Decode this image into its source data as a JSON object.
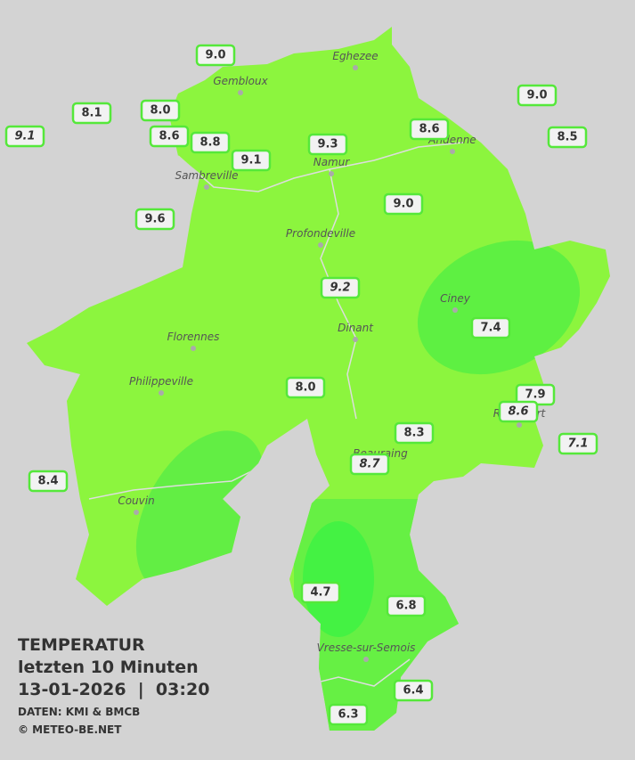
{
  "title": {
    "heading": "TEMPERATUR",
    "period": "letzten 10 Minuten",
    "datetime": "13-01-2026  |  03:20",
    "source": "DATEN: KMI & BMCB",
    "copyright": "© METEO-BE.NET"
  },
  "cities": [
    "Eghezee",
    "Gembloux",
    "Andenne",
    "Namur",
    "Sambreville",
    "Profondeville",
    "Ciney",
    "Dinant",
    "Florennes",
    "Philippeville",
    "Rochefort",
    "Beauraing",
    "Couvin",
    "Vresse-sur-Semois"
  ],
  "stations": [
    "9.0",
    "8.1",
    "8.0",
    "9.1",
    "8.6",
    "8.8",
    "9.1",
    "9.3",
    "8.6",
    "9.0",
    "8.5",
    "9.6",
    "9.0",
    "9.2",
    "7.4",
    "8.0",
    "7.9",
    "8.6",
    "8.3",
    "7.1",
    "8.7",
    "8.4",
    "4.7",
    "6.8",
    "6.4",
    "6.3"
  ]
}
